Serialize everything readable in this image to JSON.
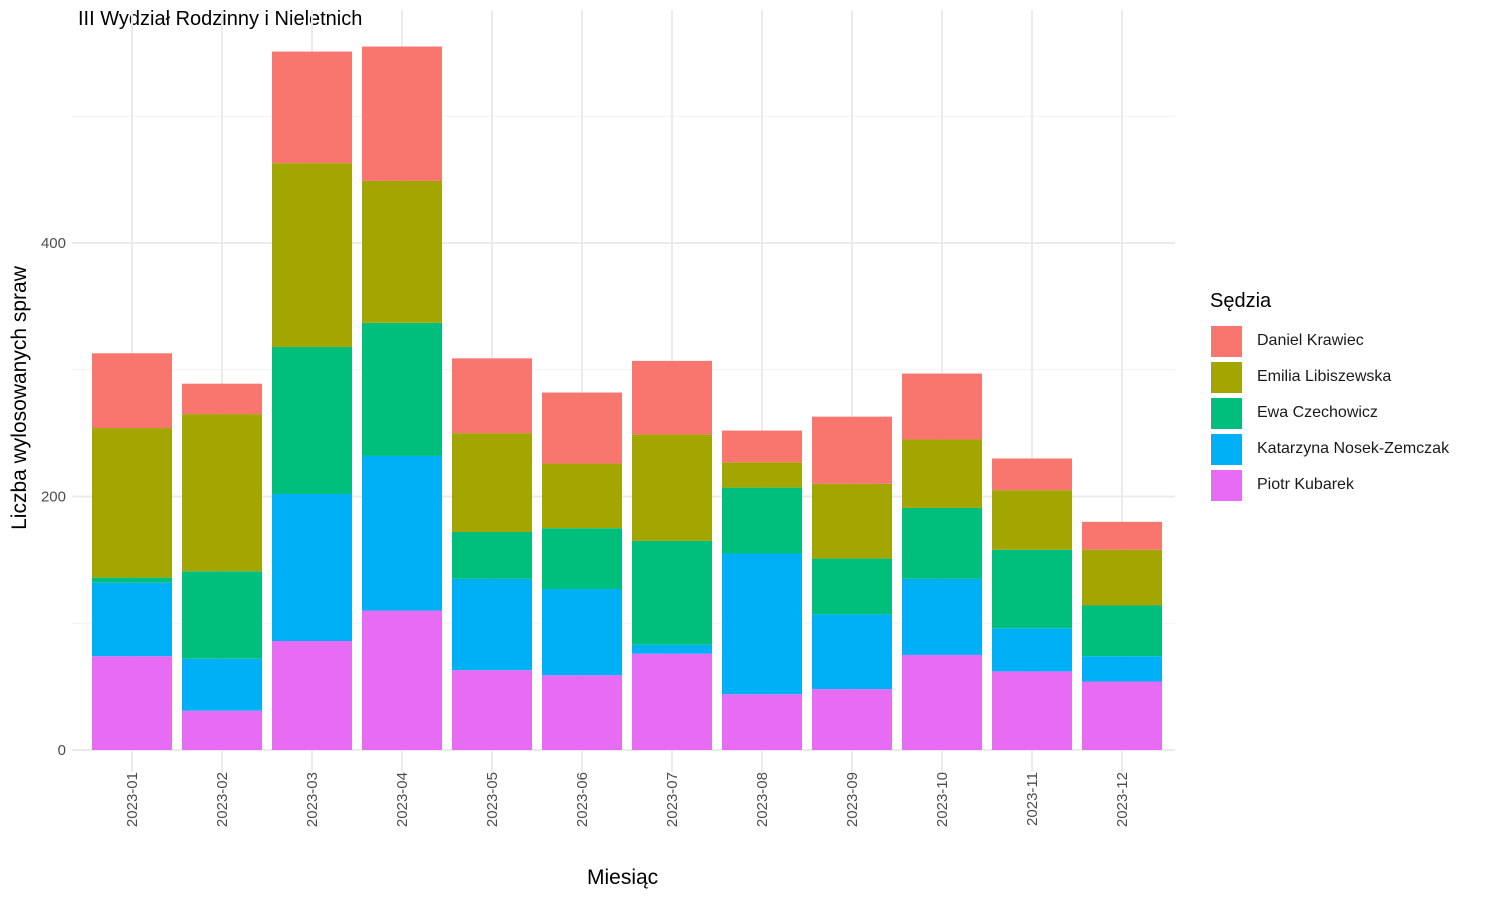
{
  "chart_data": {
    "type": "bar",
    "stacked": true,
    "title": "III Wydział Rodzinny i Nieletnich",
    "xlabel": "Miesiąc",
    "ylabel": "Liczba wylosowanych spraw",
    "legend_title": "Sędzia",
    "legend_position": "right",
    "grid": true,
    "ylim": [
      0,
      560
    ],
    "yticks": [
      "0",
      "200",
      "400"
    ],
    "categories": [
      "2023-01",
      "2023-02",
      "2023-03",
      "2023-04",
      "2023-05",
      "2023-06",
      "2023-07",
      "2023-08",
      "2023-09",
      "2023-10",
      "2023-11",
      "2023-12"
    ],
    "series": [
      {
        "name": "Piotr Kubarek",
        "color": "#E76BF3",
        "values": [
          74,
          31,
          86,
          110,
          63,
          59,
          76,
          44,
          48,
          75,
          62,
          54
        ]
      },
      {
        "name": "Katarzyna Nosek-Zemczak",
        "color": "#00B0F6",
        "values": [
          58,
          41,
          116,
          122,
          72,
          68,
          7,
          111,
          59,
          60,
          34,
          20
        ]
      },
      {
        "name": "Ewa Czechowicz",
        "color": "#00BF7D",
        "values": [
          4,
          69,
          116,
          105,
          37,
          48,
          82,
          52,
          44,
          56,
          62,
          40
        ]
      },
      {
        "name": "Emilia Libiszewska",
        "color": "#A3A500",
        "values": [
          118,
          124,
          145,
          112,
          78,
          51,
          84,
          20,
          59,
          54,
          47,
          44
        ]
      },
      {
        "name": "Daniel Krawiec",
        "color": "#F8766D",
        "values": [
          59,
          24,
          88,
          106,
          59,
          56,
          58,
          25,
          53,
          52,
          25,
          22
        ]
      }
    ]
  }
}
